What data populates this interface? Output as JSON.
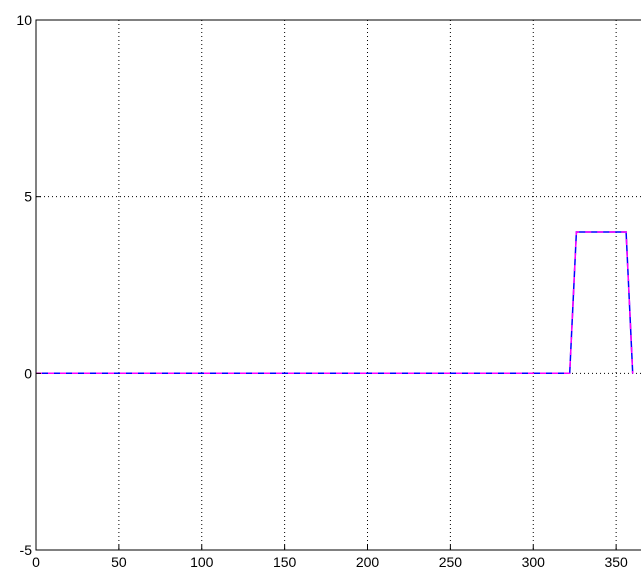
{
  "chart_data": {
    "type": "line",
    "title": "",
    "xlabel": "",
    "ylabel": "",
    "xlim": [
      0,
      365
    ],
    "ylim": [
      -5,
      10
    ],
    "xticks": [
      0,
      50,
      100,
      150,
      200,
      250,
      300,
      350
    ],
    "xtick_labels": [
      "0",
      "50",
      "100",
      "150",
      "200",
      "250",
      "300",
      "350"
    ],
    "yticks": [
      -5,
      0,
      5,
      10
    ],
    "ytick_labels": [
      "-5",
      "0",
      "5",
      "10"
    ],
    "grid": true,
    "series": [
      {
        "color": "#0000ff",
        "style": "solid",
        "x": [
          0,
          322,
          326,
          356,
          360
        ],
        "y": [
          0,
          0,
          4,
          4,
          0
        ]
      },
      {
        "color": "#ff00ff",
        "style": "solid",
        "x": [
          0,
          322,
          326,
          356,
          360
        ],
        "y": [
          0,
          0,
          4,
          4,
          0
        ]
      }
    ]
  }
}
